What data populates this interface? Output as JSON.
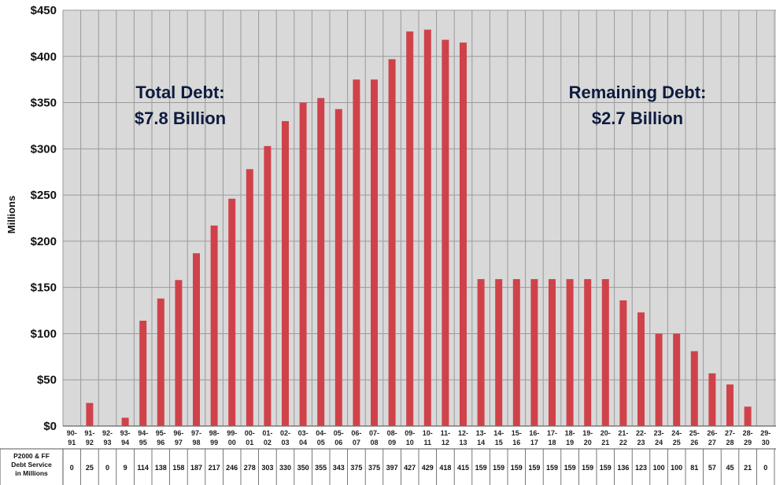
{
  "chart_data": {
    "type": "bar",
    "ylabel": "Millions",
    "ylim": [
      0,
      450
    ],
    "y_ticks": [
      "$0",
      "$50",
      "$100",
      "$150",
      "$200",
      "$250",
      "$300",
      "$350",
      "$400",
      "$450"
    ],
    "y_tick_values": [
      0,
      50,
      100,
      150,
      200,
      250,
      300,
      350,
      400,
      450
    ],
    "grid": true,
    "bar_color": "#d0424a",
    "plot_background": "#d9d9d9",
    "categories": [
      [
        "90-",
        "91"
      ],
      [
        "91-",
        "92"
      ],
      [
        "92-",
        "93"
      ],
      [
        "93-",
        "94"
      ],
      [
        "94-",
        "95"
      ],
      [
        "95-",
        "96"
      ],
      [
        "96-",
        "97"
      ],
      [
        "97-",
        "98"
      ],
      [
        "98-",
        "99"
      ],
      [
        "99-",
        "00"
      ],
      [
        "00-",
        "01"
      ],
      [
        "01-",
        "02"
      ],
      [
        "02-",
        "03"
      ],
      [
        "03-",
        "04"
      ],
      [
        "04-",
        "05"
      ],
      [
        "05-",
        "06"
      ],
      [
        "06-",
        "07"
      ],
      [
        "07-",
        "08"
      ],
      [
        "08-",
        "09"
      ],
      [
        "09-",
        "10"
      ],
      [
        "10-",
        "11"
      ],
      [
        "11-",
        "12"
      ],
      [
        "12-",
        "13"
      ],
      [
        "13-",
        "14"
      ],
      [
        "14-",
        "15"
      ],
      [
        "15-",
        "16"
      ],
      [
        "16-",
        "17"
      ],
      [
        "17-",
        "18"
      ],
      [
        "18-",
        "19"
      ],
      [
        "19-",
        "20"
      ],
      [
        "20-",
        "21"
      ],
      [
        "21-",
        "22"
      ],
      [
        "22-",
        "23"
      ],
      [
        "23-",
        "24"
      ],
      [
        "24-",
        "25"
      ],
      [
        "25-",
        "26"
      ],
      [
        "26-",
        "27"
      ],
      [
        "27-",
        "28"
      ],
      [
        "28-",
        "29"
      ],
      [
        "29-",
        "30"
      ]
    ],
    "values": [
      0,
      25,
      0,
      9,
      114,
      138,
      158,
      187,
      217,
      246,
      278,
      303,
      330,
      350,
      355,
      343,
      375,
      375,
      397,
      427,
      429,
      418,
      415,
      159,
      159,
      159,
      159,
      159,
      159,
      159,
      159,
      136,
      123,
      100,
      100,
      81,
      57,
      45,
      21,
      0
    ],
    "table_row_label": [
      "P2000 & FF",
      "Debt Service",
      "in Millions"
    ],
    "annotations": {
      "left": [
        "Total Debt:",
        "$7.8 Billion"
      ],
      "right": [
        "Remaining Debt:",
        "$2.7 Billion"
      ]
    }
  }
}
